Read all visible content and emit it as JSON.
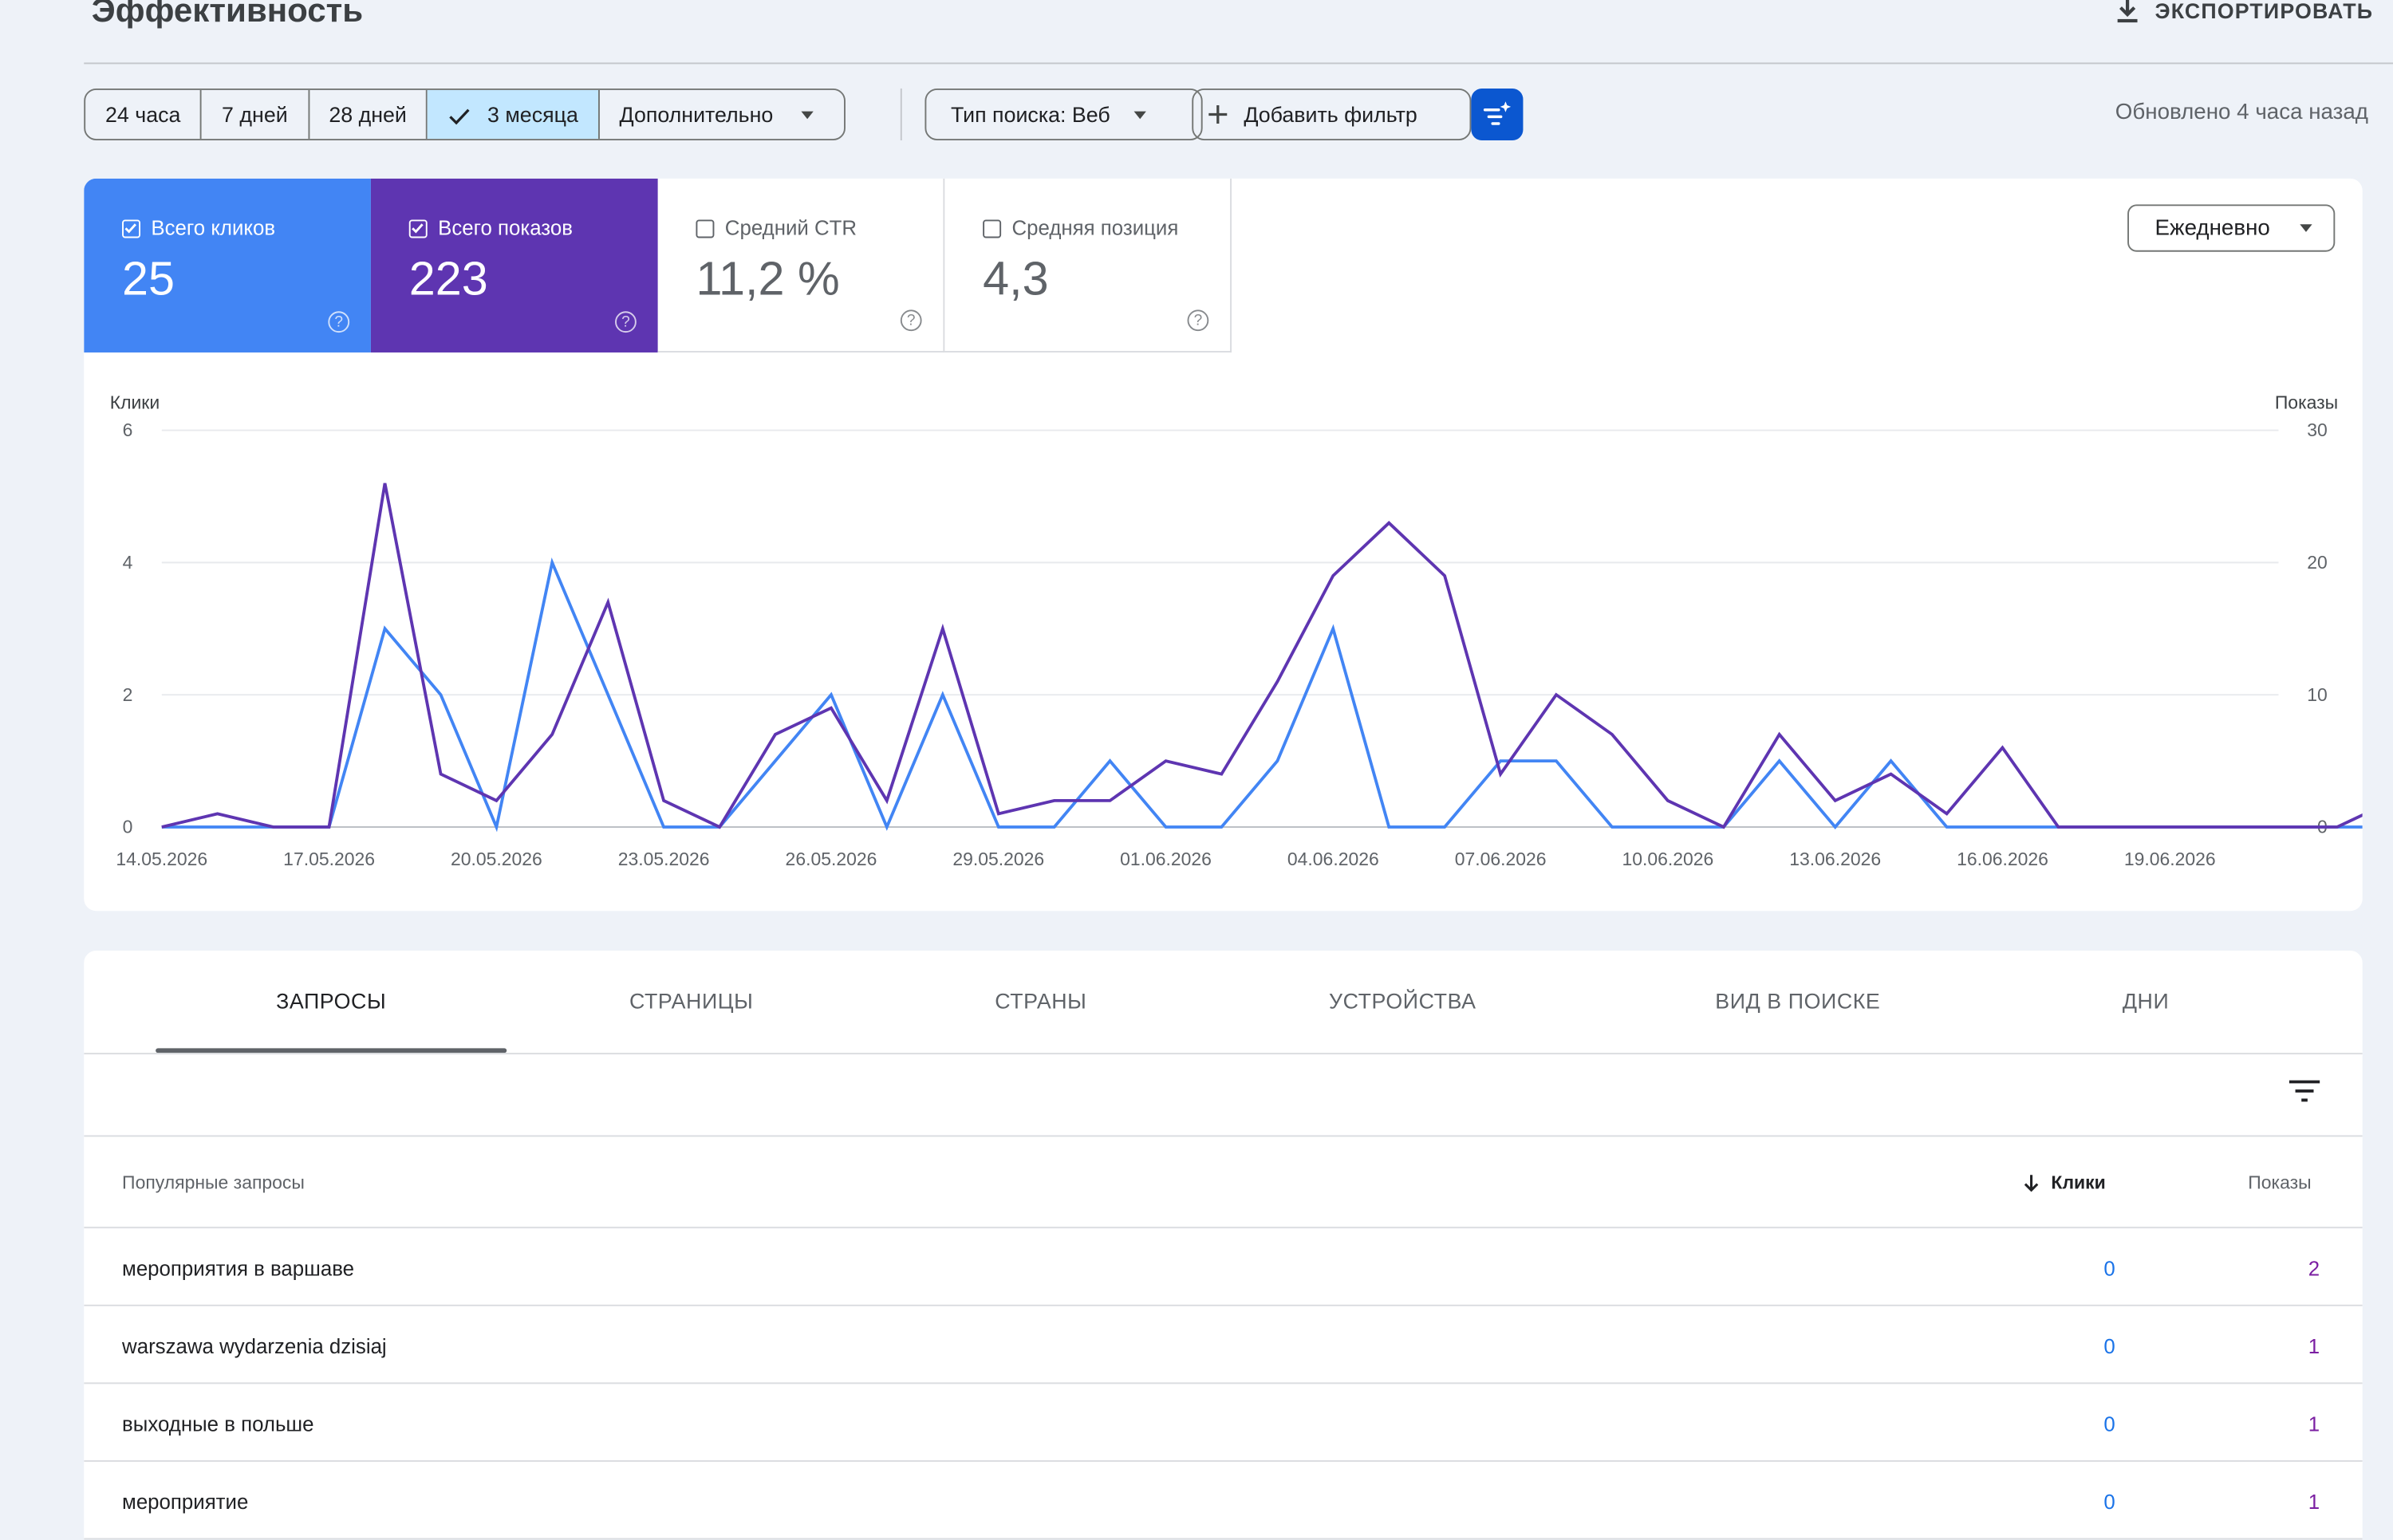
{
  "header": {
    "title": "Эффективность",
    "export_label": "ЭКСПОРТИРОВАТЬ"
  },
  "filters": {
    "date_ranges": [
      "24 часа",
      "7 дней",
      "28 дней",
      "3 месяца"
    ],
    "selected_range": "3 месяца",
    "more_label": "Дополнительно",
    "search_type": "Тип поиска: Веб",
    "add_filter": "Добавить фильтр",
    "updated": "Обновлено 4 часа назад"
  },
  "metrics": {
    "clicks": {
      "label": "Всего кликов",
      "value": "25",
      "checked": true,
      "color": "#4285f4"
    },
    "impressions": {
      "label": "Всего показов",
      "value": "223",
      "checked": true,
      "color": "#5e35b1"
    },
    "ctr": {
      "label": "Средний CTR",
      "value": "11,2 %",
      "checked": false
    },
    "position": {
      "label": "Средняя позиция",
      "value": "4,3",
      "checked": false
    }
  },
  "granularity": "Ежедневно",
  "chart_data": {
    "type": "line",
    "left_axis_label": "Клики",
    "right_axis_label": "Показы",
    "left_ylim": [
      0,
      6
    ],
    "right_ylim": [
      0,
      30
    ],
    "left_ticks": [
      "0",
      "2",
      "4",
      "6"
    ],
    "right_ticks": [
      "0",
      "10",
      "20",
      "30"
    ],
    "x_tick_labels": [
      "14.05.2026",
      "17.05.2026",
      "20.05.2026",
      "23.05.2026",
      "26.05.2026",
      "29.05.2026",
      "01.06.2026",
      "04.06.2026",
      "07.06.2026",
      "10.06.2026",
      "13.06.2026",
      "16.06.2026",
      "19.06.2026"
    ],
    "x": [
      "14.05.2026",
      "15.05.2026",
      "16.05.2026",
      "17.05.2026",
      "18.05.2026",
      "19.05.2026",
      "20.05.2026",
      "21.05.2026",
      "22.05.2026",
      "23.05.2026",
      "24.05.2026",
      "25.05.2026",
      "26.05.2026",
      "27.05.2026",
      "28.05.2026",
      "29.05.2026",
      "30.05.2026",
      "31.05.2026",
      "01.06.2026",
      "02.06.2026",
      "03.06.2026",
      "04.06.2026",
      "05.06.2026",
      "06.06.2026",
      "07.06.2026",
      "08.06.2026",
      "09.06.2026",
      "10.06.2026",
      "11.06.2026",
      "12.06.2026",
      "13.06.2026",
      "14.06.2026",
      "15.06.2026",
      "16.06.2026",
      "17.06.2026",
      "18.06.2026",
      "19.06.2026",
      "20.06.2026",
      "21.06.2026",
      "22.06.2026",
      "23.06.2026"
    ],
    "grid": true,
    "series": [
      {
        "name": "Клики",
        "axis": "left",
        "color": "#4285f4",
        "values": [
          0,
          0,
          0,
          0,
          3,
          2,
          0,
          4,
          2,
          0,
          0,
          1,
          2,
          0,
          2,
          0,
          0,
          1,
          0,
          0,
          1,
          3,
          0,
          0,
          1,
          1,
          0,
          0,
          0,
          1,
          0,
          1,
          0,
          0,
          0,
          0,
          0,
          0,
          0,
          0,
          0
        ]
      },
      {
        "name": "Показы",
        "axis": "right",
        "color": "#5e35b1",
        "values": [
          0,
          1,
          0,
          0,
          26,
          4,
          2,
          7,
          17,
          2,
          0,
          7,
          9,
          2,
          15,
          1,
          2,
          2,
          5,
          4,
          11,
          19,
          23,
          19,
          4,
          10,
          7,
          2,
          0,
          7,
          2,
          4,
          1,
          6,
          0,
          0,
          0,
          0,
          0,
          0,
          2
        ]
      }
    ]
  },
  "tabs": [
    "ЗАПРОСЫ",
    "СТРАНИЦЫ",
    "СТРАНЫ",
    "УСТРОЙСТВА",
    "ВИД В ПОИСКЕ",
    "ДНИ"
  ],
  "table": {
    "col_query": "Популярные запросы",
    "col_clicks": "Клики",
    "col_impressions": "Показы",
    "rows": [
      {
        "query": "мероприятия в варшаве",
        "clicks": "0",
        "impressions": "2"
      },
      {
        "query": "warszawa wydarzenia dzisiaj",
        "clicks": "0",
        "impressions": "1"
      },
      {
        "query": "выходные в польше",
        "clicks": "0",
        "impressions": "1"
      },
      {
        "query": "мероприятие",
        "clicks": "0",
        "impressions": "1"
      }
    ]
  }
}
